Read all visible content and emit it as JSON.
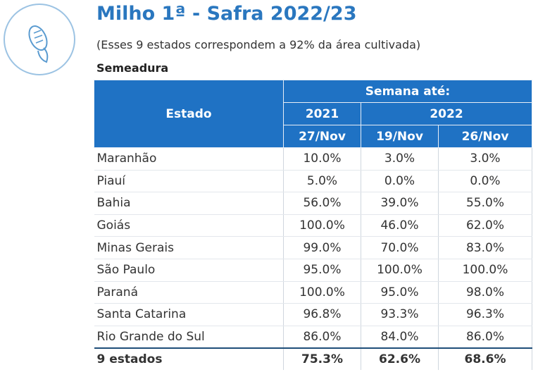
{
  "header": {
    "title": "Milho 1ª - Safra 2022/23",
    "subtitle": "(Esses 9 estados correspondem a 92% da área cultivada)",
    "section": "Semeadura"
  },
  "table": {
    "state_header": "Estado",
    "week_header": "Semana até:",
    "years": [
      "2021",
      "2022"
    ],
    "dates": [
      "27/Nov",
      "19/Nov",
      "26/Nov"
    ],
    "rows": [
      [
        "Maranhão",
        "10.0%",
        "3.0%",
        "3.0%"
      ],
      [
        "Piauí",
        "5.0%",
        "0.0%",
        "0.0%"
      ],
      [
        "Bahia",
        "56.0%",
        "39.0%",
        "55.0%"
      ],
      [
        "Goiás",
        "100.0%",
        "46.0%",
        "62.0%"
      ],
      [
        "Minas Gerais",
        "99.0%",
        "70.0%",
        "83.0%"
      ],
      [
        "São Paulo",
        "95.0%",
        "100.0%",
        "100.0%"
      ],
      [
        "Paraná",
        "100.0%",
        "95.0%",
        "98.0%"
      ],
      [
        "Santa Catarina",
        "96.8%",
        "93.3%",
        "96.3%"
      ],
      [
        "Rio Grande do Sul",
        "86.0%",
        "84.0%",
        "86.0%"
      ]
    ],
    "total": [
      "9 estados",
      "75.3%",
      "62.6%",
      "68.6%"
    ]
  }
}
